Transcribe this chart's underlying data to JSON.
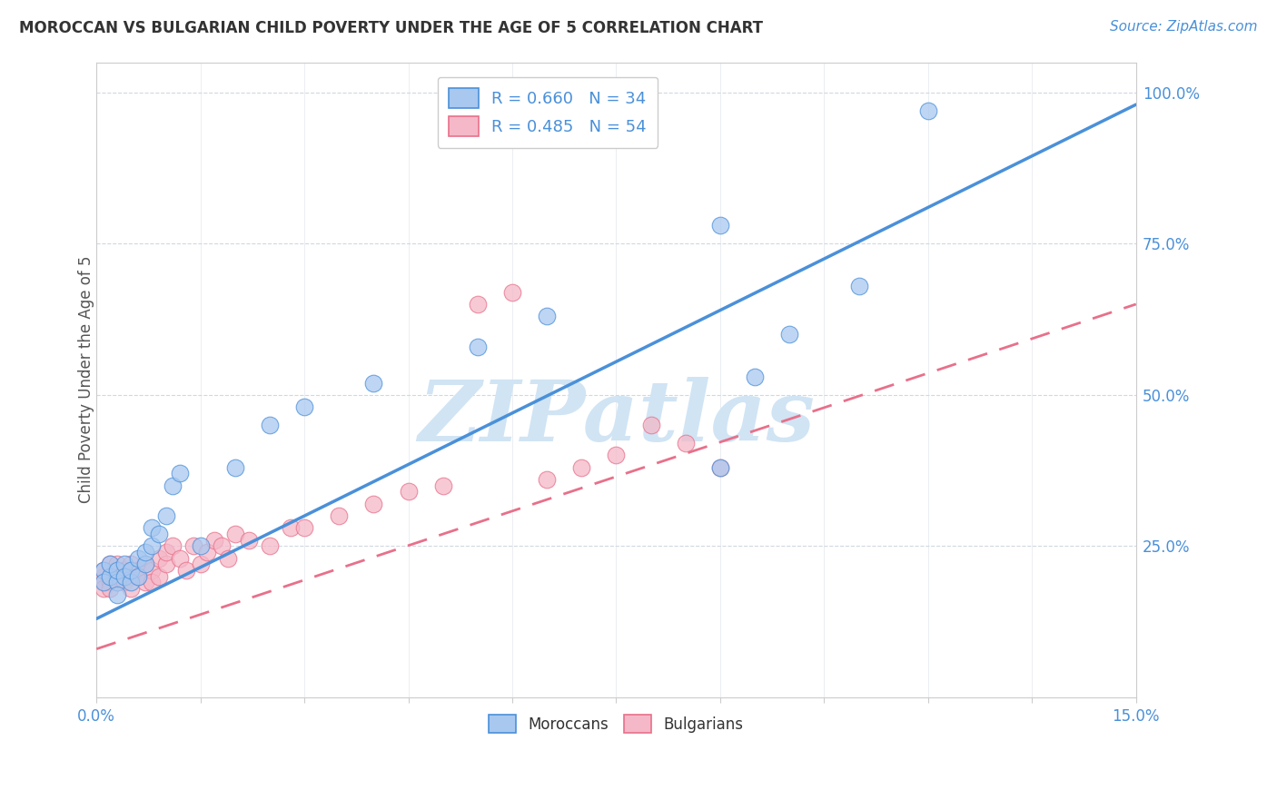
{
  "title": "MOROCCAN VS BULGARIAN CHILD POVERTY UNDER THE AGE OF 5 CORRELATION CHART",
  "source": "Source: ZipAtlas.com",
  "ylabel": "Child Poverty Under the Age of 5",
  "y_ticks": [
    "100.0%",
    "75.0%",
    "50.0%",
    "25.0%"
  ],
  "y_tick_vals": [
    1.0,
    0.75,
    0.5,
    0.25
  ],
  "legend1_text": "R = 0.660   N = 34",
  "legend2_text": "R = 0.485   N = 54",
  "legend1_color": "#a8c8f0",
  "legend2_color": "#f4b8c8",
  "moroccans_color": "#a8c8f0",
  "bulgarians_color": "#f4b8c8",
  "line_moroccan_color": "#4a90d9",
  "line_bulgarian_color": "#e8708a",
  "watermark": "ZIPatlas",
  "watermark_color": "#d0e4f4",
  "moroccans_x": [
    0.001,
    0.001,
    0.002,
    0.002,
    0.003,
    0.003,
    0.003,
    0.004,
    0.004,
    0.005,
    0.005,
    0.006,
    0.006,
    0.007,
    0.007,
    0.008,
    0.008,
    0.009,
    0.01,
    0.011,
    0.012,
    0.015,
    0.02,
    0.025,
    0.03,
    0.04,
    0.055,
    0.065,
    0.09,
    0.095,
    0.1,
    0.11,
    0.12,
    0.09
  ],
  "moroccans_y": [
    0.21,
    0.19,
    0.2,
    0.22,
    0.19,
    0.21,
    0.17,
    0.22,
    0.2,
    0.19,
    0.21,
    0.23,
    0.2,
    0.22,
    0.24,
    0.28,
    0.25,
    0.27,
    0.3,
    0.35,
    0.37,
    0.25,
    0.38,
    0.45,
    0.48,
    0.52,
    0.58,
    0.63,
    0.38,
    0.53,
    0.6,
    0.68,
    0.97,
    0.78
  ],
  "bulgarians_x": [
    0.001,
    0.001,
    0.001,
    0.001,
    0.002,
    0.002,
    0.002,
    0.002,
    0.003,
    0.003,
    0.003,
    0.003,
    0.004,
    0.004,
    0.004,
    0.005,
    0.005,
    0.005,
    0.006,
    0.006,
    0.007,
    0.007,
    0.008,
    0.008,
    0.009,
    0.009,
    0.01,
    0.01,
    0.011,
    0.012,
    0.013,
    0.014,
    0.015,
    0.016,
    0.017,
    0.018,
    0.019,
    0.02,
    0.022,
    0.025,
    0.028,
    0.03,
    0.035,
    0.04,
    0.045,
    0.05,
    0.055,
    0.06,
    0.065,
    0.07,
    0.075,
    0.08,
    0.085,
    0.09
  ],
  "bulgarians_y": [
    0.2,
    0.19,
    0.21,
    0.18,
    0.22,
    0.2,
    0.19,
    0.18,
    0.21,
    0.2,
    0.22,
    0.19,
    0.2,
    0.19,
    0.21,
    0.2,
    0.22,
    0.18,
    0.21,
    0.2,
    0.19,
    0.22,
    0.21,
    0.19,
    0.23,
    0.2,
    0.22,
    0.24,
    0.25,
    0.23,
    0.21,
    0.25,
    0.22,
    0.24,
    0.26,
    0.25,
    0.23,
    0.27,
    0.26,
    0.25,
    0.28,
    0.28,
    0.3,
    0.32,
    0.34,
    0.35,
    0.65,
    0.67,
    0.36,
    0.38,
    0.4,
    0.45,
    0.42,
    0.38
  ],
  "line_mor_x0": 0.0,
  "line_mor_y0": 0.13,
  "line_mor_x1": 0.15,
  "line_mor_y1": 0.98,
  "line_bul_x0": 0.0,
  "line_bul_y0": 0.08,
  "line_bul_x1": 0.15,
  "line_bul_y1": 0.65,
  "xlim": [
    0.0,
    0.15
  ],
  "ylim": [
    0.0,
    1.05
  ],
  "background_color": "#ffffff",
  "grid_color": "#d0d8e0"
}
